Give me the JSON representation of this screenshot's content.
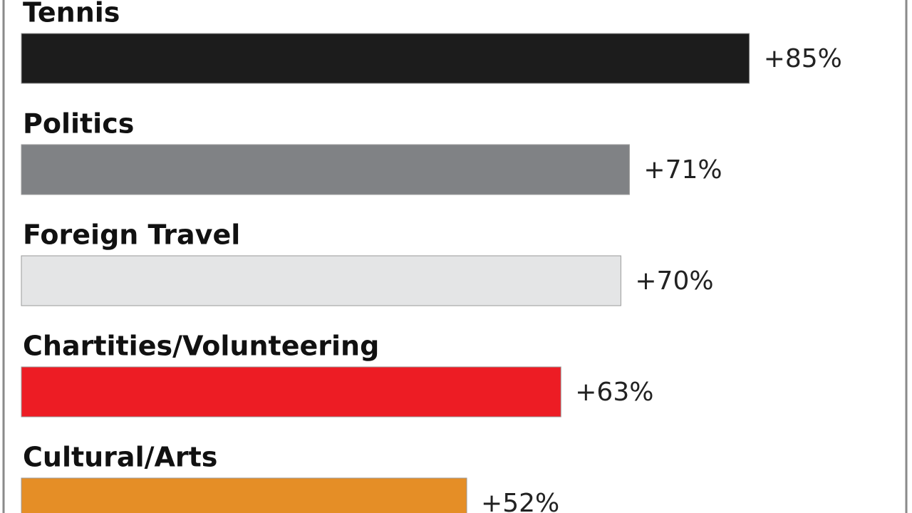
{
  "chart_data": {
    "type": "hbar",
    "categories": [
      "Tennis",
      "Politics",
      "Foreign Travel",
      "Chartities/Volunteering",
      "Cultural/Arts"
    ],
    "values": [
      85,
      71,
      70,
      63,
      52
    ],
    "value_labels": [
      "+85%",
      "+71%",
      "+70%",
      "+63%",
      "+52%"
    ],
    "colors": [
      "#1c1c1c",
      "#808285",
      "#e4e5e6",
      "#ed1c24",
      "#e58e26"
    ]
  }
}
